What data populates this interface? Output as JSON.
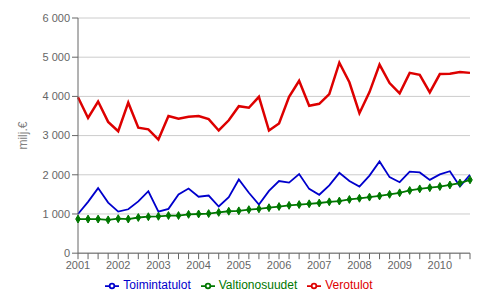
{
  "chart_data": {
    "type": "line",
    "ylabel": "milj.€",
    "categories": [
      "2001",
      null,
      null,
      null,
      "2002",
      null,
      null,
      null,
      "2003",
      null,
      null,
      null,
      "2004",
      null,
      null,
      null,
      "2005",
      null,
      null,
      null,
      "2006",
      null,
      null,
      null,
      "2007",
      null,
      null,
      null,
      "2008",
      null,
      null,
      null,
      "2009",
      null,
      null,
      null,
      "2010",
      null,
      null,
      null
    ],
    "series": [
      {
        "name": "Verotulot",
        "color": "#dd0000",
        "values": [
          3980,
          3450,
          3870,
          3350,
          3110,
          3840,
          3200,
          3160,
          2900,
          3500,
          3430,
          3480,
          3500,
          3420,
          3130,
          3390,
          3750,
          3710,
          3990,
          3130,
          3310,
          3990,
          4400,
          3760,
          3810,
          4060,
          4860,
          4360,
          3570,
          4110,
          4810,
          4340,
          4080,
          4600,
          4550,
          4100,
          4570,
          4580,
          4620,
          4600
        ]
      },
      {
        "name": "Toimintatulot",
        "color": "#0000cc",
        "values": [
          1000,
          1310,
          1660,
          1290,
          1060,
          1120,
          1320,
          1580,
          1060,
          1130,
          1500,
          1650,
          1440,
          1470,
          1190,
          1430,
          1880,
          1540,
          1240,
          1590,
          1840,
          1800,
          2020,
          1640,
          1490,
          1730,
          2050,
          1840,
          1700,
          1980,
          2340,
          1940,
          1810,
          2080,
          2060,
          1870,
          2010,
          2090,
          1700,
          2000
        ]
      },
      {
        "name": "Valtionosuudet",
        "color": "#007700",
        "marker": "diamond",
        "values": [
          870,
          870,
          870,
          850,
          880,
          870,
          910,
          930,
          940,
          960,
          960,
          990,
          1000,
          1010,
          1040,
          1070,
          1080,
          1110,
          1130,
          1160,
          1190,
          1220,
          1240,
          1260,
          1280,
          1310,
          1330,
          1370,
          1400,
          1430,
          1460,
          1500,
          1540,
          1600,
          1640,
          1670,
          1700,
          1740,
          1790,
          1870
        ]
      }
    ],
    "ylim": [
      0,
      6000
    ],
    "yticks": [
      0,
      {
        "value": 1000,
        "label": "1 000"
      },
      {
        "value": 2000,
        "label": "2 000"
      },
      {
        "value": 3000,
        "label": "3 000"
      },
      {
        "value": 4000,
        "label": "4 000"
      },
      {
        "value": 5000,
        "label": "5 000"
      },
      {
        "value": 6000,
        "label": "6 000"
      }
    ],
    "grid": "y",
    "legend": "bottom"
  }
}
